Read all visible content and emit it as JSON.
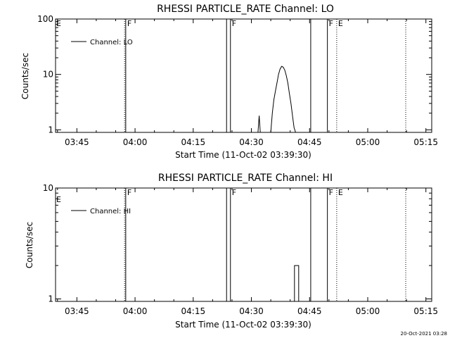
{
  "timestamp": "20-Oct-2021 03:28",
  "chart_data": [
    {
      "type": "line",
      "title": "RHESSI PARTICLE_RATE Channel: LO",
      "xlabel": "Start Time (11-Oct-02 03:39:30)",
      "ylabel": "Counts/sec",
      "x_start": "03:39:30",
      "x_tick_labels": [
        "03:45",
        "04:00",
        "04:15",
        "04:30",
        "04:45",
        "05:00",
        "05:15"
      ],
      "x_tick_minutes": [
        345,
        360,
        375,
        390,
        405,
        420,
        435
      ],
      "xlim_minutes": [
        339.5,
        436.5
      ],
      "y_scale": "log",
      "ylim": [
        0.9,
        100
      ],
      "y_tick_labels": [
        "1",
        "10",
        "100"
      ],
      "y_tick_values": [
        1,
        10,
        100
      ],
      "series": [
        {
          "name": "Channel: LO",
          "x_minutes": [
            391.7,
            392.0,
            392.3,
            392.6,
            395.0,
            395.4,
            395.8,
            396.2,
            396.6,
            397.0,
            397.4,
            397.8,
            398.2,
            398.6,
            399.0,
            399.4,
            399.8,
            400.2,
            400.6,
            401.0,
            401.4
          ],
          "values": [
            0.9,
            1.8,
            0.9,
            0.9,
            0.9,
            2.0,
            3.5,
            5.0,
            7.0,
            10.0,
            12.5,
            14.0,
            13.5,
            12.0,
            9.5,
            7.0,
            4.5,
            3.0,
            1.8,
            1.1,
            0.9
          ]
        }
      ],
      "vlines": [
        {
          "minute": 357.3,
          "style": "dotted",
          "label": ""
        },
        {
          "minute": 357.6,
          "style": "solid",
          "label": "F"
        },
        {
          "minute": 383.6,
          "style": "solid",
          "label": ""
        },
        {
          "minute": 384.6,
          "style": "solid",
          "label": "F"
        },
        {
          "minute": 405.3,
          "style": "solid",
          "label": ""
        },
        {
          "minute": 409.6,
          "style": "solid",
          "label": "F"
        },
        {
          "minute": 412.0,
          "style": "dotted",
          "label": "E"
        },
        {
          "minute": 429.8,
          "style": "dotted",
          "label": ""
        }
      ],
      "left_flag": "E",
      "legend_position": "top-left"
    },
    {
      "type": "line",
      "title": "RHESSI PARTICLE_RATE Channel: HI",
      "xlabel": "Start Time (11-Oct-02 03:39:30)",
      "ylabel": "Counts/sec",
      "x_start": "03:39:30",
      "x_tick_labels": [
        "03:45",
        "04:00",
        "04:15",
        "04:30",
        "04:45",
        "05:00",
        "05:15"
      ],
      "x_tick_minutes": [
        345,
        360,
        375,
        390,
        405,
        420,
        435
      ],
      "xlim_minutes": [
        339.5,
        436.5
      ],
      "y_scale": "log",
      "ylim": [
        0.95,
        10
      ],
      "y_tick_labels": [
        "1",
        "10"
      ],
      "y_tick_values": [
        1,
        10
      ],
      "series": [
        {
          "name": "Channel: HI",
          "x_minutes": [
            401.1,
            401.1,
            402.2,
            402.2
          ],
          "values": [
            0.95,
            2.0,
            2.0,
            0.95
          ]
        }
      ],
      "vlines": [
        {
          "minute": 357.3,
          "style": "dotted",
          "label": ""
        },
        {
          "minute": 357.6,
          "style": "solid",
          "label": "F"
        },
        {
          "minute": 383.6,
          "style": "solid",
          "label": ""
        },
        {
          "minute": 384.6,
          "style": "solid",
          "label": "F"
        },
        {
          "minute": 405.3,
          "style": "solid",
          "label": ""
        },
        {
          "minute": 409.6,
          "style": "solid",
          "label": "F"
        },
        {
          "minute": 412.0,
          "style": "dotted",
          "label": "E"
        },
        {
          "minute": 429.8,
          "style": "dotted",
          "label": ""
        }
      ],
      "left_flag": "E",
      "legend_position": "top-left"
    }
  ]
}
